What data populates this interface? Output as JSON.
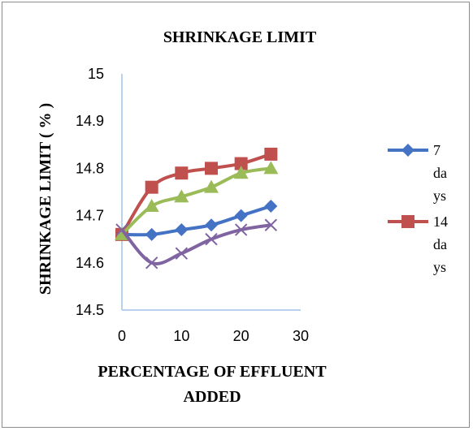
{
  "chart_data": {
    "type": "line",
    "title": "SHRINKAGE LIMIT",
    "xlabel_lines": [
      "PERCENTAGE OF EFFLUENT",
      "ADDED"
    ],
    "ylabel": "SHRINKAGE LIMIT ( % )",
    "xlim": [
      0,
      30
    ],
    "ylim": [
      14.5,
      15
    ],
    "x_ticks": [
      "0",
      "10",
      "20",
      "30"
    ],
    "y_ticks": [
      "14.5",
      "14.6",
      "14.7",
      "14.8",
      "14.9",
      "15"
    ],
    "grid": false,
    "legend_position": "right",
    "x": [
      0,
      5,
      10,
      15,
      20,
      25
    ],
    "series": [
      {
        "name": "7 days",
        "legend_lines": [
          "7",
          "da",
          "ys"
        ],
        "color": "#4472c4",
        "marker": "diamond",
        "values": [
          14.66,
          14.66,
          14.67,
          14.68,
          14.7,
          14.72
        ]
      },
      {
        "name": "14 days",
        "legend_lines": [
          "14",
          "da",
          "ys"
        ],
        "color": "#c0504d",
        "marker": "square",
        "values": [
          14.66,
          14.76,
          14.79,
          14.8,
          14.81,
          14.83
        ]
      },
      {
        "color": "#9bbb59",
        "marker": "triangle",
        "values": [
          14.66,
          14.72,
          14.74,
          14.76,
          14.79,
          14.8
        ]
      },
      {
        "color": "#8064a2",
        "marker": "x",
        "values": [
          14.67,
          14.6,
          14.62,
          14.65,
          14.67,
          14.68
        ]
      }
    ]
  }
}
